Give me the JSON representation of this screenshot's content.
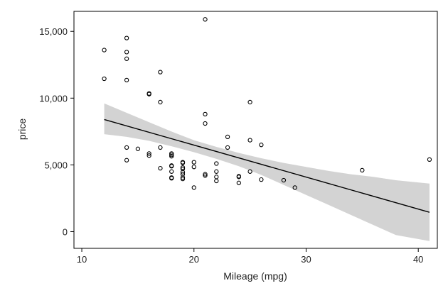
{
  "chart_data": {
    "type": "scatter",
    "xlabel": "Mileage (mpg)",
    "ylabel": "price",
    "xlim": [
      9.3,
      41.7
    ],
    "ylim": [
      -1250,
      16500
    ],
    "xticks": [
      10,
      20,
      30,
      40
    ],
    "yticks": [
      0,
      5000,
      10000,
      15000
    ],
    "ytick_labels": [
      "0",
      "5,000",
      "10,000",
      "15,000"
    ],
    "grid": false,
    "legend": "none",
    "series": [
      {
        "kind": "points",
        "points": [
          [
            12,
            13600
          ],
          [
            12,
            11450
          ],
          [
            14,
            14500
          ],
          [
            14,
            13450
          ],
          [
            14,
            12950
          ],
          [
            14,
            11350
          ],
          [
            14,
            6300
          ],
          [
            14,
            5350
          ],
          [
            15,
            6200
          ],
          [
            16,
            10350
          ],
          [
            16,
            10300
          ],
          [
            16,
            5850
          ],
          [
            16,
            5700
          ],
          [
            17,
            11950
          ],
          [
            17,
            9700
          ],
          [
            17,
            6300
          ],
          [
            17,
            4750
          ],
          [
            18,
            5850
          ],
          [
            18,
            5750
          ],
          [
            18,
            5650
          ],
          [
            18,
            4950
          ],
          [
            18,
            4900
          ],
          [
            18,
            4500
          ],
          [
            18,
            4050
          ],
          [
            18,
            4000
          ],
          [
            19,
            5200
          ],
          [
            19,
            5150
          ],
          [
            19,
            4800
          ],
          [
            19,
            4700
          ],
          [
            19,
            4450
          ],
          [
            19,
            4300
          ],
          [
            19,
            4050
          ],
          [
            19,
            3950
          ],
          [
            20,
            5200
          ],
          [
            20,
            4850
          ],
          [
            20,
            3300
          ],
          [
            21,
            15900
          ],
          [
            21,
            8800
          ],
          [
            21,
            8100
          ],
          [
            21,
            4300
          ],
          [
            21,
            4200
          ],
          [
            22,
            5100
          ],
          [
            22,
            4500
          ],
          [
            22,
            4100
          ],
          [
            22,
            3800
          ],
          [
            23,
            7100
          ],
          [
            23,
            6300
          ],
          [
            24,
            4150
          ],
          [
            24,
            4100
          ],
          [
            24,
            3650
          ],
          [
            25,
            9700
          ],
          [
            25,
            6850
          ],
          [
            25,
            4500
          ],
          [
            26,
            6500
          ],
          [
            26,
            3900
          ],
          [
            28,
            3850
          ],
          [
            29,
            3300
          ],
          [
            35,
            4600
          ],
          [
            41,
            5400
          ]
        ]
      },
      {
        "kind": "fit-line",
        "x": [
          12,
          41
        ],
        "y": [
          8400,
          1450
        ]
      },
      {
        "kind": "confidence-band",
        "x": [
          12,
          14,
          16,
          18,
          20,
          22,
          24,
          26,
          28,
          30,
          32,
          34,
          36,
          38,
          41
        ],
        "lower": [
          7300,
          7100,
          6800,
          6400,
          5950,
          5450,
          4900,
          4250,
          3500,
          2750,
          2000,
          1250,
          500,
          -250,
          -700
        ],
        "upper": [
          9600,
          8900,
          8200,
          7500,
          6850,
          6350,
          5900,
          5500,
          5150,
          4850,
          4550,
          4300,
          4100,
          3850,
          3600
        ]
      }
    ],
    "colors": {
      "band": "#d3d3d3",
      "line": "#000000",
      "marker": "#000000",
      "frame": "#000000"
    }
  }
}
